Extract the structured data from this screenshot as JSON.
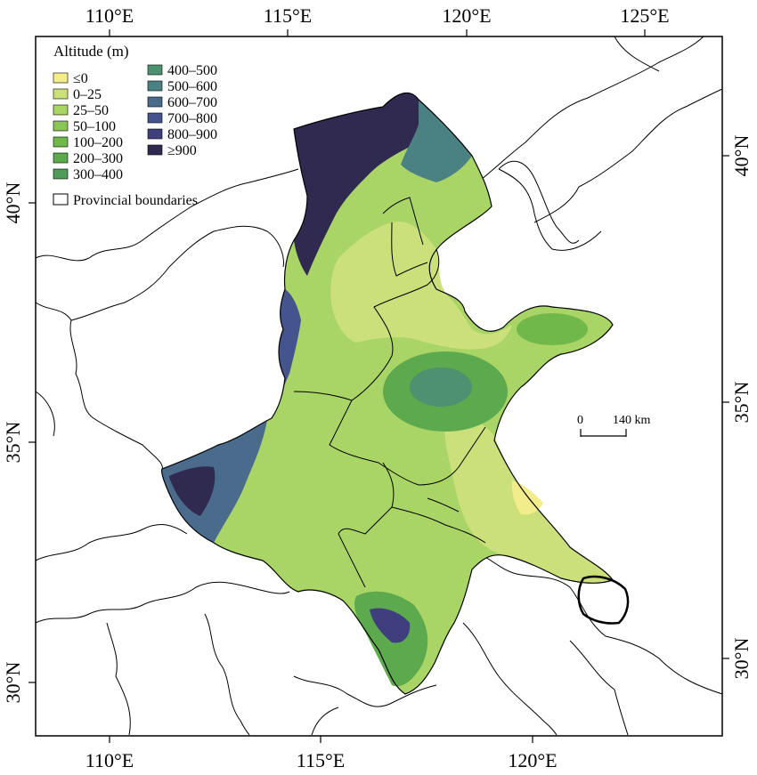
{
  "map": {
    "lon_ticks_top": [
      "110°E",
      "115°E",
      "120°E",
      "125°E"
    ],
    "lon_ticks_bottom": [
      "110°E",
      "115°E",
      "120°E"
    ],
    "lat_ticks_left": [
      "40°N",
      "35°N",
      "30°N"
    ],
    "lat_ticks_right": [
      "40°N",
      "35°N",
      "30°N"
    ]
  },
  "legend": {
    "title": "Altitude (m)",
    "classes_left": [
      {
        "label": "≤0",
        "color": "#f2ec8a"
      },
      {
        "label": "0–25",
        "color": "#cbe07b"
      },
      {
        "label": "25–50",
        "color": "#a9d466"
      },
      {
        "label": "50–100",
        "color": "#8ac656"
      },
      {
        "label": "100–200",
        "color": "#71b84a"
      },
      {
        "label": "200–300",
        "color": "#5daa4e"
      },
      {
        "label": "300–400",
        "color": "#4f9c5a"
      }
    ],
    "classes_right": [
      {
        "label": "400–500",
        "color": "#4c9170"
      },
      {
        "label": "500–600",
        "color": "#4a8283"
      },
      {
        "label": "600–700",
        "color": "#4a6b8c"
      },
      {
        "label": "700–800",
        "color": "#46548d"
      },
      {
        "label": "800–900",
        "color": "#3f3f7d"
      },
      {
        "label": "≥900",
        "color": "#302a50"
      }
    ],
    "boundary_label": "Provincial boundaries"
  },
  "scale_bar": {
    "start_label": "0",
    "end_label": "140 km"
  }
}
